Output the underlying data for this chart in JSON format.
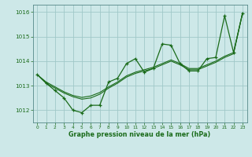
{
  "title": "Graphe pression niveau de la mer (hPa)",
  "background_color": "#cde8e8",
  "grid_color": "#a0c8c8",
  "line_color": "#1a6b1a",
  "xlim": [
    -0.5,
    23.5
  ],
  "ylim": [
    1011.5,
    1016.3
  ],
  "yticks": [
    1012,
    1013,
    1014,
    1015,
    1016
  ],
  "xticks": [
    0,
    1,
    2,
    3,
    4,
    5,
    6,
    7,
    8,
    9,
    10,
    11,
    12,
    13,
    14,
    15,
    16,
    17,
    18,
    19,
    20,
    21,
    22,
    23
  ],
  "series_marker": {
    "x": [
      0,
      1,
      2,
      3,
      4,
      5,
      6,
      7,
      8,
      9,
      10,
      11,
      12,
      13,
      14,
      15,
      16,
      17,
      18,
      19,
      20,
      21,
      22,
      23
    ],
    "y": [
      1013.45,
      1013.1,
      1012.8,
      1012.5,
      1012.0,
      1011.9,
      1012.2,
      1012.2,
      1013.15,
      1013.3,
      1013.9,
      1014.1,
      1013.55,
      1013.7,
      1014.7,
      1014.65,
      1013.9,
      1013.6,
      1013.6,
      1014.1,
      1014.15,
      1015.85,
      1014.35,
      1015.95
    ]
  },
  "series_smooth1": {
    "x": [
      0,
      1,
      2,
      3,
      4,
      5,
      6,
      7,
      8,
      9,
      10,
      11,
      12,
      13,
      14,
      15,
      16,
      17,
      18,
      19,
      20,
      21,
      22,
      23
    ],
    "y": [
      1013.45,
      1013.1,
      1012.9,
      1012.7,
      1012.55,
      1012.45,
      1012.5,
      1012.65,
      1012.9,
      1013.1,
      1013.35,
      1013.5,
      1013.6,
      1013.7,
      1013.85,
      1014.0,
      1013.85,
      1013.65,
      1013.65,
      1013.8,
      1013.95,
      1014.15,
      1014.3,
      1015.95
    ]
  },
  "series_smooth2": {
    "x": [
      0,
      1,
      2,
      3,
      4,
      5,
      6,
      7,
      8,
      9,
      10,
      11,
      12,
      13,
      14,
      15,
      16,
      17,
      18,
      19,
      20,
      21,
      22,
      23
    ],
    "y": [
      1013.45,
      1013.15,
      1012.95,
      1012.75,
      1012.6,
      1012.52,
      1012.58,
      1012.72,
      1012.95,
      1013.15,
      1013.4,
      1013.55,
      1013.65,
      1013.75,
      1013.9,
      1014.05,
      1013.9,
      1013.7,
      1013.7,
      1013.85,
      1014.0,
      1014.2,
      1014.35,
      1015.95
    ]
  }
}
